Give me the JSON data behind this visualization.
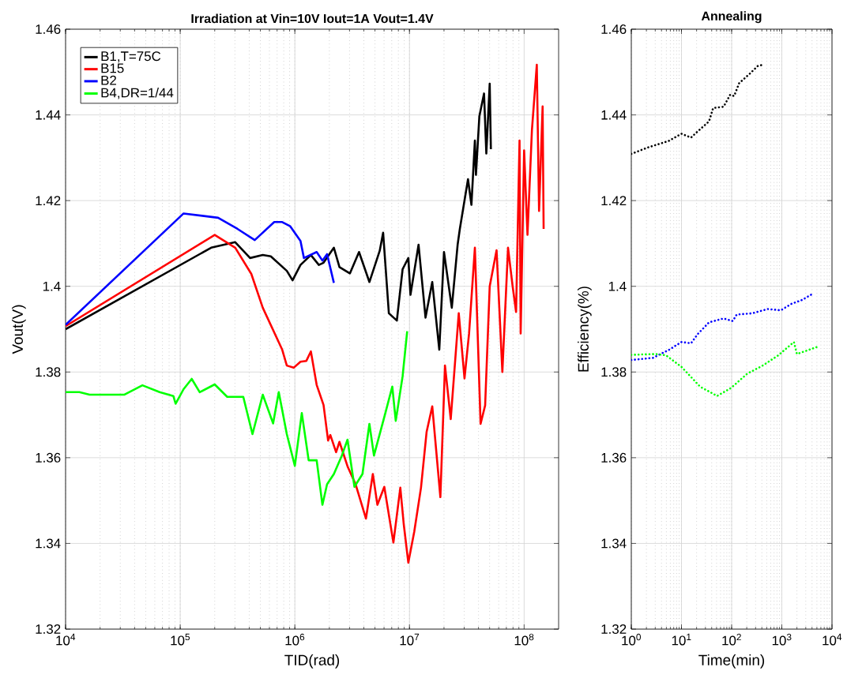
{
  "chart_data": [
    {
      "type": "line",
      "title": "Irradiation at Vin=10V Iout=1A Vout=1.4V",
      "xlabel": "TID(rad)",
      "ylabel": "Vout(V)",
      "log": "x",
      "grid": true,
      "legend": "top left",
      "line_style": "solid",
      "xlim": [
        10000,
        200000000
      ],
      "ylim": [
        1.32,
        1.46
      ],
      "xticks": [
        {
          "value": 10000,
          "label": "10$^{4}$"
        },
        {
          "value": 100000,
          "label": "10$^{5}$"
        },
        {
          "value": 1000000,
          "label": "10$^{6}$"
        },
        {
          "value": 10000000,
          "label": "10$^{7}$"
        },
        {
          "value": 100000000,
          "label": "10$^{8}$"
        }
      ],
      "yticks": [
        1.32,
        1.34,
        1.36,
        1.38,
        1.4,
        1.42,
        1.44,
        1.46
      ],
      "series": [
        {
          "name": "B1,T=75C",
          "color": "#000000",
          "x": [
            10000,
            186000,
            302000,
            407000,
            525000,
            617000,
            851000,
            955000,
            1120000,
            1380000,
            1620000,
            1780000,
            2190000,
            2450000,
            3020000,
            3630000,
            4470000,
            5500000,
            5890000,
            6610000,
            7760000,
            8710000,
            9770000,
            10200000,
            12000000,
            13800000,
            15800000,
            18200000,
            20000000,
            23400000,
            26300000,
            27500000,
            32400000,
            34700000,
            37200000,
            38000000,
            40700000,
            44700000,
            46800000,
            50100000,
            51300000
          ],
          "values": [
            1.39,
            1.409,
            1.4103,
            1.4066,
            1.4073,
            1.407,
            1.4036,
            1.4014,
            1.405,
            1.4073,
            1.405,
            1.4055,
            1.409,
            1.4045,
            1.403,
            1.408,
            1.401,
            1.4083,
            1.4125,
            1.3937,
            1.392,
            1.404,
            1.4066,
            1.398,
            1.4097,
            1.3927,
            1.401,
            1.3852,
            1.408,
            1.395,
            1.4097,
            1.4134,
            1.425,
            1.419,
            1.434,
            1.426,
            1.4397,
            1.445,
            1.431,
            1.4473,
            1.432
          ]
        },
        {
          "name": "B15",
          "color": "#ff0000",
          "x": [
            10000,
            200000,
            302000,
            417000,
            525000,
            776000,
            851000,
            977000,
            1120000,
            1260000,
            1380000,
            1550000,
            1780000,
            1950000,
            2040000,
            2290000,
            2450000,
            2880000,
            3390000,
            4170000,
            4790000,
            5250000,
            6030000,
            7240000,
            8320000,
            8910000,
            9770000,
            11000000,
            12600000,
            14100000,
            15800000,
            18600000,
            20400000,
            22900000,
            26900000,
            30200000,
            33100000,
            37200000,
            41700000,
            45700000,
            50100000,
            57500000,
            64600000,
            72400000,
            79400000,
            85100000,
            91200000,
            93300000,
            100000000,
            107000000,
            117000000,
            129000000,
            135000000,
            145000000,
            148000000
          ],
          "values": [
            1.3907,
            1.412,
            1.409,
            1.4029,
            1.395,
            1.3852,
            1.3815,
            1.381,
            1.3824,
            1.3826,
            1.3848,
            1.377,
            1.3723,
            1.364,
            1.3653,
            1.3613,
            1.3637,
            1.358,
            1.3538,
            1.3458,
            1.3562,
            1.349,
            1.3532,
            1.3402,
            1.353,
            1.3445,
            1.3355,
            1.3427,
            1.353,
            1.366,
            1.372,
            1.3508,
            1.3815,
            1.369,
            1.3937,
            1.3785,
            1.389,
            1.409,
            1.3679,
            1.3722,
            1.4,
            1.4084,
            1.38,
            1.409,
            1.4,
            1.394,
            1.434,
            1.389,
            1.4317,
            1.412,
            1.4365,
            1.4517,
            1.4176,
            1.442,
            1.4134
          ]
        },
        {
          "name": "B2",
          "color": "#0000ff",
          "x": [
            10000,
            107000,
            214000,
            316000,
            447000,
            661000,
            776000,
            912000,
            1120000,
            1200000,
            1550000,
            1740000,
            1910000,
            2190000
          ],
          "values": [
            1.391,
            1.417,
            1.416,
            1.4134,
            1.4108,
            1.415,
            1.415,
            1.414,
            1.4106,
            1.4066,
            1.408,
            1.406,
            1.4075,
            1.4008
          ]
        },
        {
          "name": "B4,DR=1/44",
          "color": "#00ff00",
          "x": [
            10000,
            13200,
            16200,
            32400,
            46800,
            66100,
            87100,
            91200,
            107000,
            126000,
            148000,
            200000,
            257000,
            355000,
            427000,
            525000,
            646000,
            724000,
            851000,
            1000000,
            1150000,
            1320000,
            1550000,
            1740000,
            1910000,
            2190000,
            2570000,
            2880000,
            3310000,
            3890000,
            4470000,
            4900000,
            6170000,
            7080000,
            7590000,
            8710000,
            9550000
          ],
          "values": [
            1.3753,
            1.3753,
            1.3747,
            1.3747,
            1.3769,
            1.3753,
            1.3744,
            1.3726,
            1.376,
            1.3784,
            1.3753,
            1.3771,
            1.3742,
            1.3742,
            1.3655,
            1.3747,
            1.368,
            1.3753,
            1.3655,
            1.3581,
            1.3704,
            1.3594,
            1.3594,
            1.349,
            1.3538,
            1.3562,
            1.3605,
            1.3642,
            1.3532,
            1.3562,
            1.3679,
            1.3605,
            1.3705,
            1.3766,
            1.3686,
            1.379,
            1.3895
          ]
        }
      ]
    },
    {
      "type": "line",
      "title": "Annealing",
      "xlabel": "Time(min)",
      "ylabel": "Efficiency(%)",
      "log": "x",
      "grid": true,
      "line_style": "dotted",
      "xlim": [
        1,
        10000
      ],
      "ylim": [
        1.32,
        1.46
      ],
      "xticks": [
        {
          "value": 1,
          "label": "10$^{0}$"
        },
        {
          "value": 10,
          "label": "10$^{1}$"
        },
        {
          "value": 100,
          "label": "10$^{2}$"
        },
        {
          "value": 1000,
          "label": "10$^{3}$"
        },
        {
          "value": 10000,
          "label": "10$^{4}$"
        }
      ],
      "yticks": [
        1.32,
        1.34,
        1.36,
        1.38,
        1.4,
        1.42,
        1.44,
        1.46
      ],
      "series": [
        {
          "color": "#000000",
          "x": [
            1,
            2.14,
            5.5,
            10,
            15.5,
            19.5,
            35.5,
            42.7,
            69.2,
            93.3,
            112,
            141,
            229,
            331,
            417
          ],
          "values": [
            1.4309,
            1.4324,
            1.4339,
            1.4356,
            1.4347,
            1.4358,
            1.4385,
            1.4416,
            1.4419,
            1.4447,
            1.4444,
            1.4474,
            1.4496,
            1.4514,
            1.4517
          ]
        },
        {
          "color": "#0000ff",
          "x": [
            1,
            2.69,
            5.5,
            10,
            15.5,
            20.9,
            35.5,
            69.2,
            105,
            126,
            257,
            525,
            955,
            1550,
            2510,
            4070
          ],
          "values": [
            1.3828,
            1.3833,
            1.3851,
            1.387,
            1.3867,
            1.3888,
            1.3916,
            1.3925,
            1.3919,
            1.3934,
            1.3937,
            1.3947,
            1.3944,
            1.3959,
            1.3968,
            1.3982
          ]
        },
        {
          "color": "#00ff00",
          "x": [
            1,
            3.02,
            4.9,
            10,
            23.4,
            51.3,
            97.7,
            204,
            417,
            851,
            1740,
            2000,
            4900
          ],
          "values": [
            1.384,
            1.3842,
            1.3839,
            1.3812,
            1.3766,
            1.3744,
            1.3763,
            1.3796,
            1.3815,
            1.3839,
            1.387,
            1.3842,
            1.3858
          ]
        }
      ]
    }
  ]
}
